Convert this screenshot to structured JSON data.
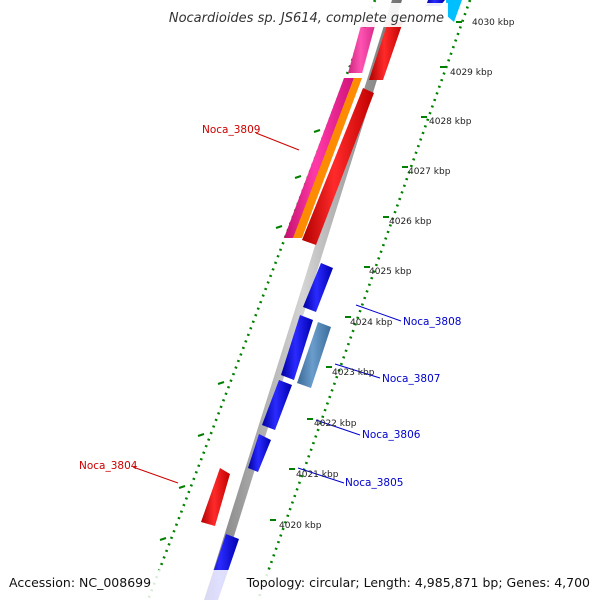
{
  "title": "Nocardioides sp. JS614, complete genome",
  "footer": {
    "accession": "Accession: NC_008699",
    "summary": "Topology: circular; Length: 4,985,871 bp; Genes: 4,700"
  },
  "ticks": [
    "4030 kbp",
    "4029 kbp",
    "4028 kbp",
    "4027 kbp",
    "4026 kbp",
    "4025 kbp",
    "4024 kbp",
    "4023 kbp",
    "4022 kbp",
    "4021 kbp",
    "4020 kbp"
  ],
  "gene_labels": [
    "Noca_3809",
    "Noca_3808",
    "Noca_3807",
    "Noca_3806",
    "Noca_3805",
    "Noca_3804"
  ],
  "colors": {
    "red": "#ff0000",
    "blue": "#0000ff",
    "steel": "#4682b4",
    "magenta": "#ff1493",
    "orange": "#ff8c00",
    "cyan": "#00bfff",
    "dots": "#008000",
    "label_red": "#cc0000",
    "label_blue": "#0000cc"
  }
}
